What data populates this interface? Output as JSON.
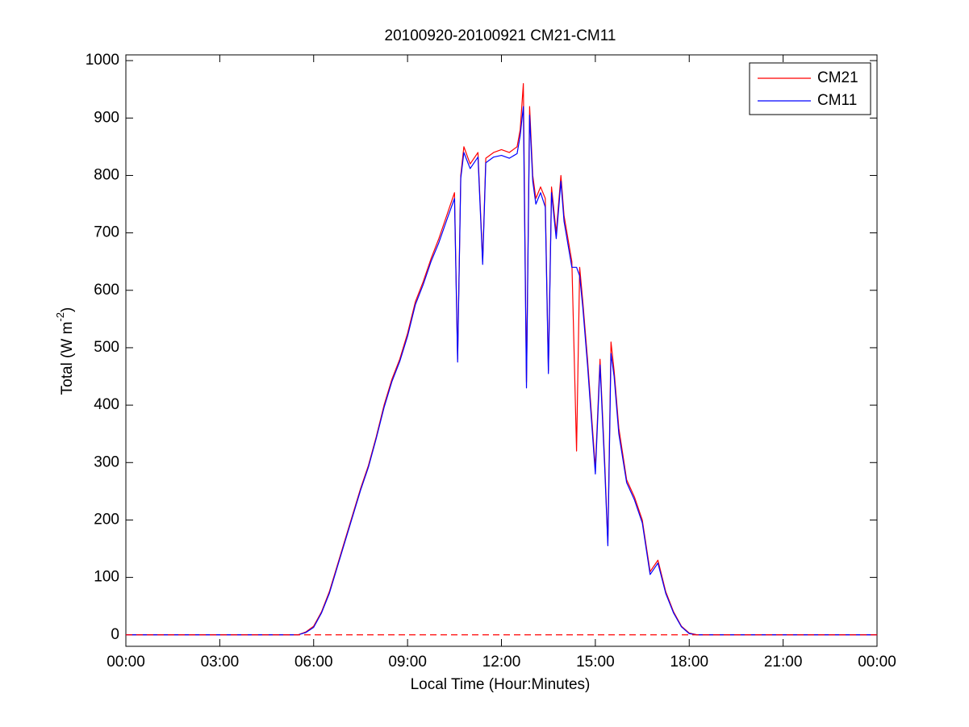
{
  "chart_data": {
    "type": "line",
    "title": "20100920-20100921 CM21-CM11",
    "xlabel": "Local Time (Hour:Minutes)",
    "ylabel": [
      "Total (W m",
      "-2",
      ")"
    ],
    "xlim": [
      0,
      24
    ],
    "xticks": [
      {
        "value": 0,
        "label": "00:00"
      },
      {
        "value": 3,
        "label": "03:00"
      },
      {
        "value": 6,
        "label": "06:00"
      },
      {
        "value": 9,
        "label": "09:00"
      },
      {
        "value": 12,
        "label": "12:00"
      },
      {
        "value": 15,
        "label": "15:00"
      },
      {
        "value": 18,
        "label": "18:00"
      },
      {
        "value": 21,
        "label": "21:00"
      },
      {
        "value": 24,
        "label": "00:00"
      }
    ],
    "ylim": [
      -20,
      1010
    ],
    "yticks": [
      0,
      100,
      200,
      300,
      400,
      500,
      600,
      700,
      800,
      900,
      1000
    ],
    "grid": false,
    "legend": "upper right",
    "reference_line": {
      "value": 0,
      "color": "#ff0000",
      "style": "dashed"
    },
    "x": [
      0,
      3,
      5.5,
      5.75,
      6,
      6.25,
      6.5,
      6.75,
      7,
      7.25,
      7.5,
      7.75,
      8,
      8.25,
      8.5,
      8.75,
      9,
      9.25,
      9.5,
      9.75,
      10,
      10.25,
      10.5,
      10.6,
      10.7,
      10.8,
      11,
      11.25,
      11.4,
      11.5,
      11.75,
      12,
      12.25,
      12.5,
      12.6,
      12.7,
      12.8,
      12.9,
      13,
      13.1,
      13.25,
      13.4,
      13.5,
      13.6,
      13.75,
      13.9,
      14,
      14.25,
      14.4,
      14.5,
      14.6,
      14.75,
      15,
      15.15,
      15.3,
      15.4,
      15.5,
      15.6,
      15.75,
      16,
      16.25,
      16.5,
      16.75,
      17,
      17.25,
      17.5,
      17.75,
      18,
      18.25,
      24
    ],
    "series": [
      {
        "name": "CM21",
        "color": "#ff0000",
        "values": [
          0,
          0,
          0,
          5,
          15,
          40,
          75,
          120,
          165,
          210,
          255,
          295,
          345,
          400,
          445,
          480,
          525,
          580,
          615,
          655,
          690,
          730,
          770,
          480,
          800,
          850,
          820,
          840,
          650,
          830,
          840,
          845,
          840,
          850,
          880,
          960,
          440,
          920,
          800,
          760,
          780,
          760,
          460,
          780,
          700,
          800,
          730,
          650,
          320,
          640,
          580,
          480,
          290,
          480,
          300,
          160,
          510,
          460,
          360,
          270,
          240,
          200,
          110,
          130,
          75,
          40,
          15,
          3,
          0,
          0
        ]
      },
      {
        "name": "CM11",
        "color": "#0000ff",
        "values": [
          0,
          0,
          0,
          4,
          13,
          38,
          72,
          117,
          162,
          207,
          252,
          292,
          342,
          396,
          441,
          476,
          520,
          575,
          610,
          650,
          683,
          722,
          760,
          475,
          795,
          840,
          812,
          832,
          645,
          822,
          832,
          835,
          830,
          838,
          870,
          920,
          430,
          905,
          790,
          750,
          770,
          745,
          455,
          770,
          690,
          790,
          720,
          640,
          640,
          625,
          570,
          470,
          280,
          470,
          290,
          155,
          490,
          450,
          350,
          265,
          235,
          195,
          105,
          125,
          72,
          38,
          14,
          2,
          0,
          0
        ]
      }
    ]
  }
}
